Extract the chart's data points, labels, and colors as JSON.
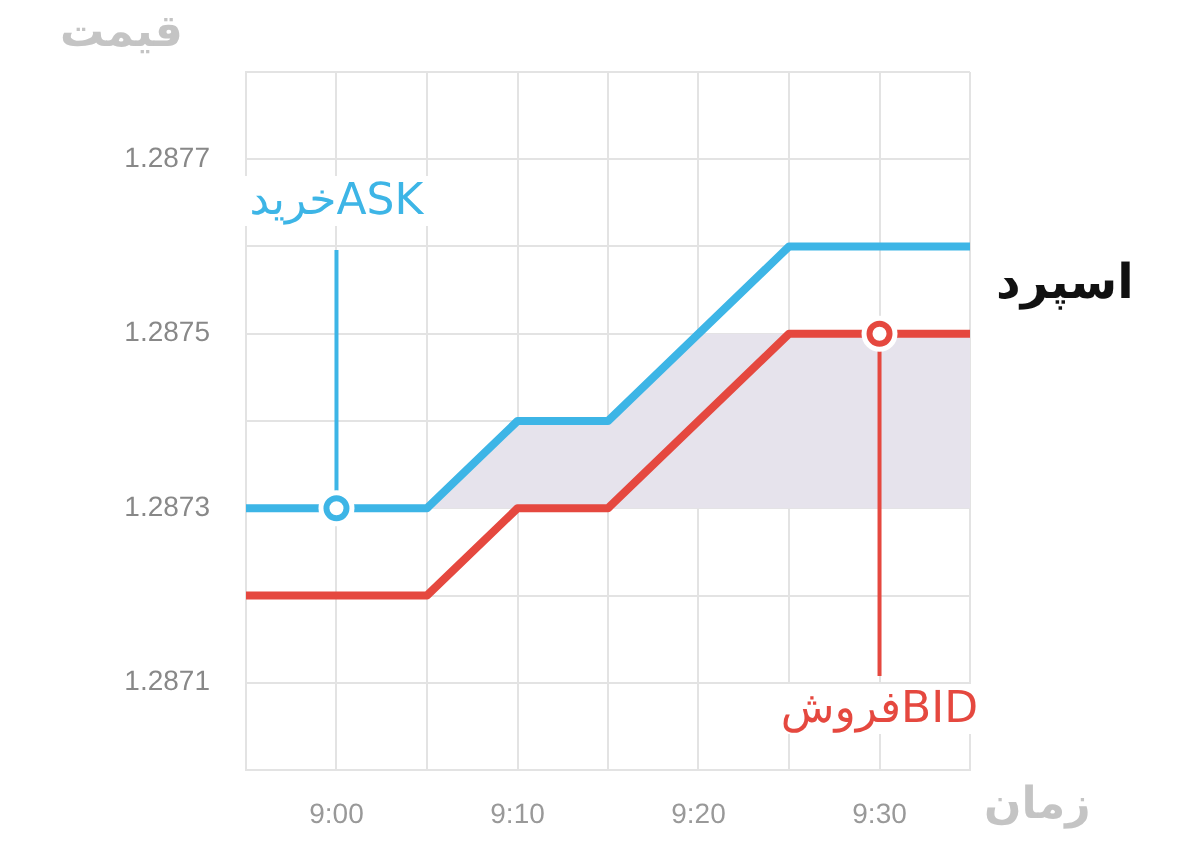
{
  "chart_data": {
    "type": "line",
    "xlabel": "زمان",
    "ylabel": "قیمت",
    "x": [
      8.9167,
      9.0833,
      9.1667,
      9.25,
      9.4167,
      9.5833
    ],
    "series": [
      {
        "color": "#3db5e6",
        "values": [
          1.2873,
          1.2873,
          1.2874,
          1.2874,
          1.2876,
          1.2876
        ]
      },
      {
        "color": "#e5483f",
        "values": [
          1.2872,
          1.2872,
          1.2873,
          1.2873,
          1.2875,
          1.2875
        ]
      }
    ],
    "xlim": [
      8.9167,
      9.5833
    ],
    "xticks": [
      {
        "value": 8.9167,
        "label": null
      },
      {
        "value": 9,
        "label": "9:00"
      },
      {
        "value": 9.0833,
        "label": null
      },
      {
        "value": 9.1667,
        "label": "9:10"
      },
      {
        "value": 9.25,
        "label": null
      },
      {
        "value": 9.3333,
        "label": "9:20"
      },
      {
        "value": 9.4167,
        "label": null
      },
      {
        "value": 9.5,
        "label": "9:30"
      },
      {
        "value": 9.5833,
        "label": null
      }
    ],
    "ylim": [
      1.287,
      1.2878
    ],
    "yticks": [
      {
        "value": 1.287,
        "label": null
      },
      1.2871,
      {
        "value": 1.2872,
        "label": null
      },
      1.2873,
      {
        "value": 1.2874,
        "label": null
      },
      1.2875,
      {
        "value": 1.2876,
        "label": null
      },
      1.2877,
      {
        "value": 1.2878,
        "label": null
      }
    ],
    "bands": [
      {
        "axis": "y",
        "from": 1.2873,
        "to": 1.2875,
        "label": "اسپرد",
        "color": "#e6e3ec"
      }
    ],
    "annotations": [
      {
        "text": "خریدASK",
        "x": 9,
        "y": 1.2873
      },
      {
        "text": "فروشBID",
        "x": 9.5,
        "y": 1.2875
      }
    ],
    "grid": true,
    "marker": "none",
    "line_style": "solid",
    "legend": false
  }
}
